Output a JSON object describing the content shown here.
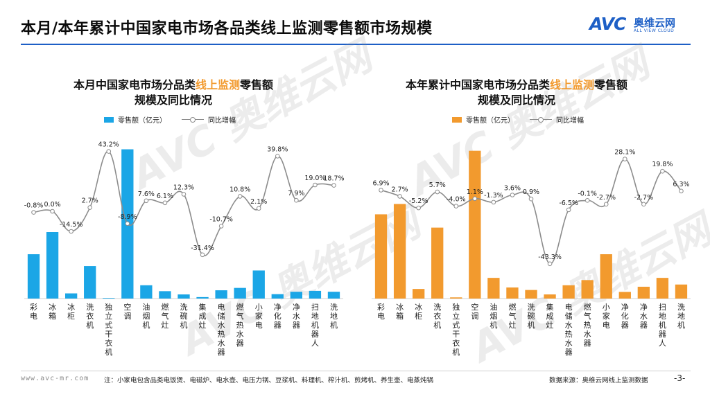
{
  "page_title": "本月/本年累计中国家电市场各品类线上监测零售额市场规模",
  "logo": {
    "text": "AVC",
    "name_cn": "奥维云网",
    "name_en": "ALL VIEW CLOUD"
  },
  "watermark": {
    "text": "AVC 奥维云网",
    "sub": "ALL VIEW CLOUD"
  },
  "footer": {
    "url": "www.avc-mr.com",
    "note": "注：小家电包含品类电饭煲、电磁炉、电水壶、电压力锅、豆浆机、料理机、榨汁机、煎烤机、养生壶、电蒸炖锅",
    "source": "数据来源：奥维云网线上监测数据",
    "page": "-3-"
  },
  "colors": {
    "brand": "#1d5fc6",
    "left_bar": "#1ba6e6",
    "right_bar": "#f29a2e",
    "line": "#8c8c8c",
    "highlight": "#f29a2e"
  },
  "chart_data": [
    {
      "type": "bar",
      "title_pre": "本月中国家电市场分品类",
      "title_hl": "线上监测",
      "title_post": "零售额",
      "title_line2": "规模及同比情况",
      "legend_bar": "零售额（亿元）",
      "legend_line": "同比增幅",
      "categories": [
        "彩电",
        "冰箱",
        "冰柜",
        "洗衣机",
        "独立式干衣机",
        "空调",
        "油烟机",
        "燃气灶",
        "洗碗机",
        "集成灶",
        "电储水热水器",
        "燃气热水器",
        "小家电",
        "净化器",
        "净水器",
        "扫地机器人",
        "洗地机"
      ],
      "series": [
        {
          "values": [
            30.0,
            45.0,
            3.5,
            22.0,
            0.4,
            101.0,
            9.0,
            5.0,
            2.8,
            1.0,
            5.6,
            7.2,
            19.0,
            3.0,
            4.6,
            5.2,
            4.6
          ]
        },
        {
          "values": [
            -0.8,
            0.0,
            -14.5,
            2.7,
            43.2,
            -8.9,
            7.6,
            6.1,
            12.3,
            -31.4,
            -10.7,
            10.8,
            2.1,
            39.8,
            7.9,
            19.0,
            18.7
          ]
        }
      ],
      "line_labels": [
        "-0.8%",
        "0.0%",
        "-14.5%",
        "2.7%",
        "43.2%",
        "-8.9%",
        "7.6%",
        "6.1%",
        "12.3%",
        "-31.4%",
        "-10.7%",
        "10.8%",
        "2.1%",
        "39.8%",
        "7.9%",
        "19.0%",
        "18.7%"
      ],
      "bar_ylim": [
        0,
        105
      ],
      "line_ylim": [
        -45,
        45
      ]
    },
    {
      "type": "bar",
      "title_pre": "本年累计中国家电市场分品类",
      "title_hl": "线上监测",
      "title_post": "零售额",
      "title_line2": "规模及同比情况",
      "legend_bar": "零售额（亿元）",
      "legend_line": "同比增幅",
      "categories": [
        "彩电",
        "冰箱",
        "冰柜",
        "洗衣机",
        "独立式干衣机",
        "空调",
        "油烟机",
        "燃气灶",
        "洗碗机",
        "集成灶",
        "电储水热水器",
        "燃气热水器",
        "小家电",
        "净化器",
        "净水器",
        "扫地机器人",
        "洗地机"
      ],
      "series": [
        {
          "values": [
            570,
            640,
            65,
            480,
            8,
            1000,
            140,
            75,
            58,
            28,
            90,
            125,
            300,
            45,
            80,
            140,
            95
          ]
        },
        {
          "values": [
            6.9,
            2.7,
            -5.2,
            5.7,
            -4.0,
            1.1,
            -1.3,
            3.6,
            0.9,
            -43.3,
            -6.5,
            -0.1,
            -2.7,
            28.1,
            -2.7,
            19.8,
            6.3
          ]
        }
      ],
      "line_labels": [
        "6.9%",
        "2.7%",
        "-5.2%",
        "5.7%",
        "-4.0%",
        "1.1%",
        "-1.3%",
        "3.6%",
        "0.9%",
        "-43.3%",
        "-6.5%",
        "-0.1%",
        "-2.7%",
        "28.1%",
        "-2.7%",
        "19.8%",
        "6.3%"
      ],
      "bar_ylim": [
        0,
        1050
      ],
      "line_ylim": [
        -50,
        35
      ]
    }
  ]
}
